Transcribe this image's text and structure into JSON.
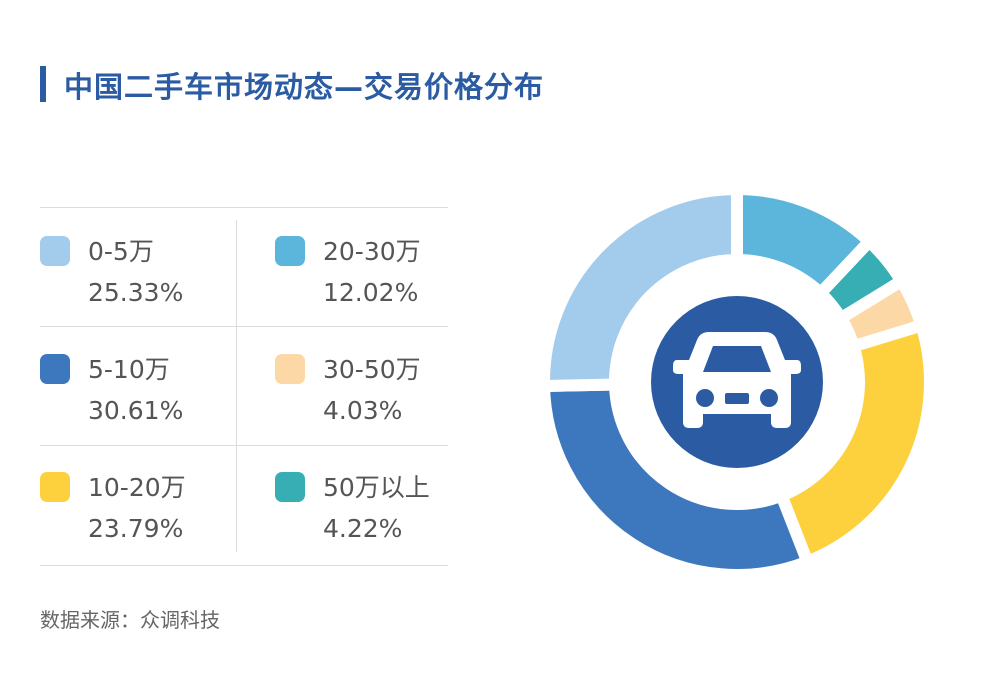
{
  "title": "中国二手车市场动态—交易价格分布",
  "source": "数据来源：众调科技",
  "center_icon": "car-icon",
  "chart_data": {
    "type": "pie",
    "variant": "donut",
    "title": "中国二手车市场动态—交易价格分布",
    "unit": "%",
    "legend_placement": "left",
    "slices_clockwise_from_top": [
      "20-30万",
      "50万以上",
      "30-50万",
      "10-20万",
      "5-10万",
      "0-5万"
    ],
    "categories": [
      "0-5万",
      "5-10万",
      "10-20万",
      "20-30万",
      "30-50万",
      "50万以上"
    ],
    "values": [
      25.33,
      30.61,
      23.79,
      12.02,
      4.03,
      4.22
    ],
    "labels": [
      "25.33%",
      "30.61%",
      "23.79%",
      "12.02%",
      "4.03%",
      "4.22%"
    ],
    "colors": [
      "#a3cbec",
      "#3d78be",
      "#fdd13e",
      "#5cb5da",
      "#fcd8a6",
      "#36aeb4"
    ]
  },
  "colors": {
    "title": "#2a5ba3",
    "center": "#2a5ba3"
  }
}
